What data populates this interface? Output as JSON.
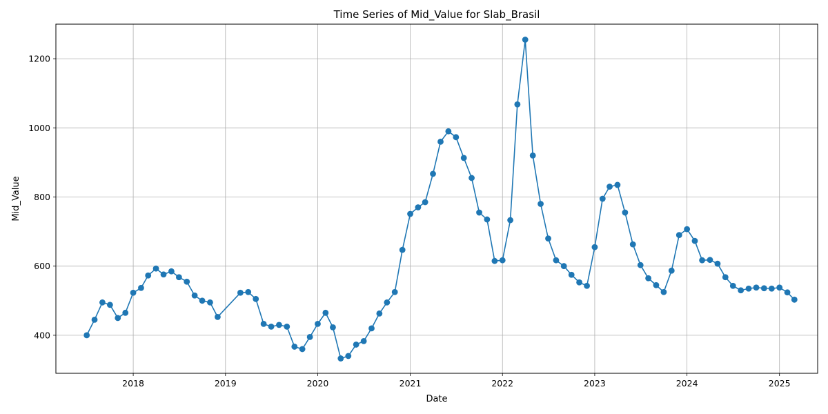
{
  "chart_data": {
    "type": "line",
    "title": "Time Series of Mid_Value for Slab_Brasil",
    "xlabel": "Date",
    "ylabel": "Mid_Value",
    "grid": true,
    "marker": "circle",
    "series_color": "#1f77b4",
    "xlim": [
      "2017-03-01",
      "2025-06-01"
    ],
    "ylim": [
      290,
      1300
    ],
    "x_ticks": [
      "2018",
      "2019",
      "2020",
      "2021",
      "2022",
      "2023",
      "2024",
      "2025"
    ],
    "y_ticks": [
      "400",
      "600",
      "800",
      "1000",
      "1200"
    ],
    "series": [
      {
        "x": [
          "2017-07-01",
          "2017-08-01",
          "2017-09-01",
          "2017-10-01",
          "2017-11-01",
          "2017-12-01",
          "2018-01-01",
          "2018-02-01",
          "2018-03-01",
          "2018-04-01",
          "2018-05-01",
          "2018-06-01",
          "2018-07-01",
          "2018-08-01",
          "2018-09-01",
          "2018-10-01",
          "2018-11-01",
          "2018-12-01",
          "2019-03-01",
          "2019-04-01",
          "2019-05-01",
          "2019-06-01",
          "2019-07-01",
          "2019-08-01",
          "2019-09-01",
          "2019-10-01",
          "2019-11-01",
          "2019-12-01",
          "2020-01-01",
          "2020-02-01",
          "2020-03-01",
          "2020-04-01",
          "2020-05-01",
          "2020-06-01",
          "2020-07-01",
          "2020-08-01",
          "2020-09-01",
          "2020-10-01",
          "2020-11-01",
          "2020-12-01",
          "2021-01-01",
          "2021-02-01",
          "2021-03-01",
          "2021-04-01",
          "2021-05-01",
          "2021-06-01",
          "2021-07-01",
          "2021-08-01",
          "2021-09-01",
          "2021-10-01",
          "2021-11-01",
          "2021-12-01",
          "2022-01-01",
          "2022-02-01",
          "2022-03-01",
          "2022-04-01",
          "2022-05-01",
          "2022-06-01",
          "2022-07-01",
          "2022-08-01",
          "2022-09-01",
          "2022-10-01",
          "2022-11-01",
          "2022-12-01",
          "2023-01-01",
          "2023-02-01",
          "2023-03-01",
          "2023-04-01",
          "2023-05-01",
          "2023-06-01",
          "2023-07-01",
          "2023-08-01",
          "2023-09-01",
          "2023-10-01",
          "2023-11-01",
          "2023-12-01",
          "2024-01-01",
          "2024-02-01",
          "2024-03-01",
          "2024-04-01",
          "2024-05-01",
          "2024-06-01",
          "2024-07-01",
          "2024-08-01",
          "2024-09-01",
          "2024-10-01",
          "2024-11-01",
          "2024-12-01",
          "2025-01-01",
          "2025-02-01",
          "2025-03-01"
        ],
        "values": [
          400,
          445,
          495,
          488,
          450,
          465,
          523,
          537,
          573,
          593,
          576,
          585,
          568,
          555,
          515,
          500,
          495,
          453,
          523,
          525,
          505,
          433,
          425,
          430,
          425,
          367,
          360,
          395,
          433,
          465,
          423,
          333,
          340,
          373,
          383,
          420,
          463,
          495,
          525,
          647,
          751,
          770,
          785,
          867,
          960,
          990,
          973,
          913,
          855,
          755,
          735,
          615,
          617,
          733,
          1068,
          1255,
          920,
          780,
          680,
          617,
          600,
          575,
          553,
          543,
          655,
          795,
          830,
          835,
          755,
          663,
          603,
          565,
          545,
          525,
          587,
          690,
          707,
          673,
          617,
          618,
          607,
          568,
          543,
          530,
          535,
          538,
          536,
          535,
          538,
          524,
          503
        ]
      }
    ]
  }
}
